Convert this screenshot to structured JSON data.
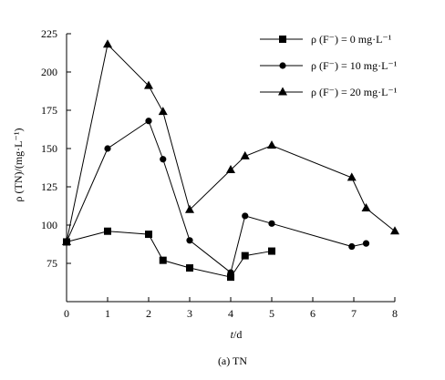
{
  "chart_data": {
    "type": "line",
    "caption": "(a) TN",
    "xlabel_italic": "t",
    "xlabel_unit": "/d",
    "ylabel": "ρ (TN)/(mg·L⁻¹)",
    "xlim": [
      0,
      8
    ],
    "ylim": [
      50,
      225
    ],
    "xticks": [
      "0",
      "1",
      "2",
      "3",
      "4",
      "5",
      "6",
      "7",
      "8"
    ],
    "yticks": [
      "75",
      "100",
      "125",
      "150",
      "175",
      "200",
      "225"
    ],
    "grid": false,
    "legend_position": "top-right",
    "series": [
      {
        "name": "ρ (F⁻) = 0 mg·L⁻¹",
        "marker": "square",
        "x": [
          0,
          1,
          2,
          2.35,
          3,
          4,
          4.35,
          5
        ],
        "y": [
          89,
          96,
          94,
          77,
          72,
          66,
          80,
          83
        ]
      },
      {
        "name": "ρ (F⁻) = 10 mg·L⁻¹",
        "marker": "circle",
        "x": [
          0,
          1,
          2,
          2.35,
          3,
          4,
          4.35,
          5,
          6.95,
          7.3
        ],
        "y": [
          89,
          150,
          168,
          143,
          90,
          69,
          106,
          101,
          86,
          88
        ]
      },
      {
        "name": "ρ (F⁻) = 20 mg·L⁻¹",
        "marker": "triangle",
        "x": [
          0,
          1,
          2,
          2.35,
          3,
          4,
          4.35,
          5,
          6.95,
          7.3,
          8
        ],
        "y": [
          89,
          218,
          191,
          174,
          110,
          136,
          145,
          152,
          131,
          111,
          96
        ]
      }
    ]
  }
}
